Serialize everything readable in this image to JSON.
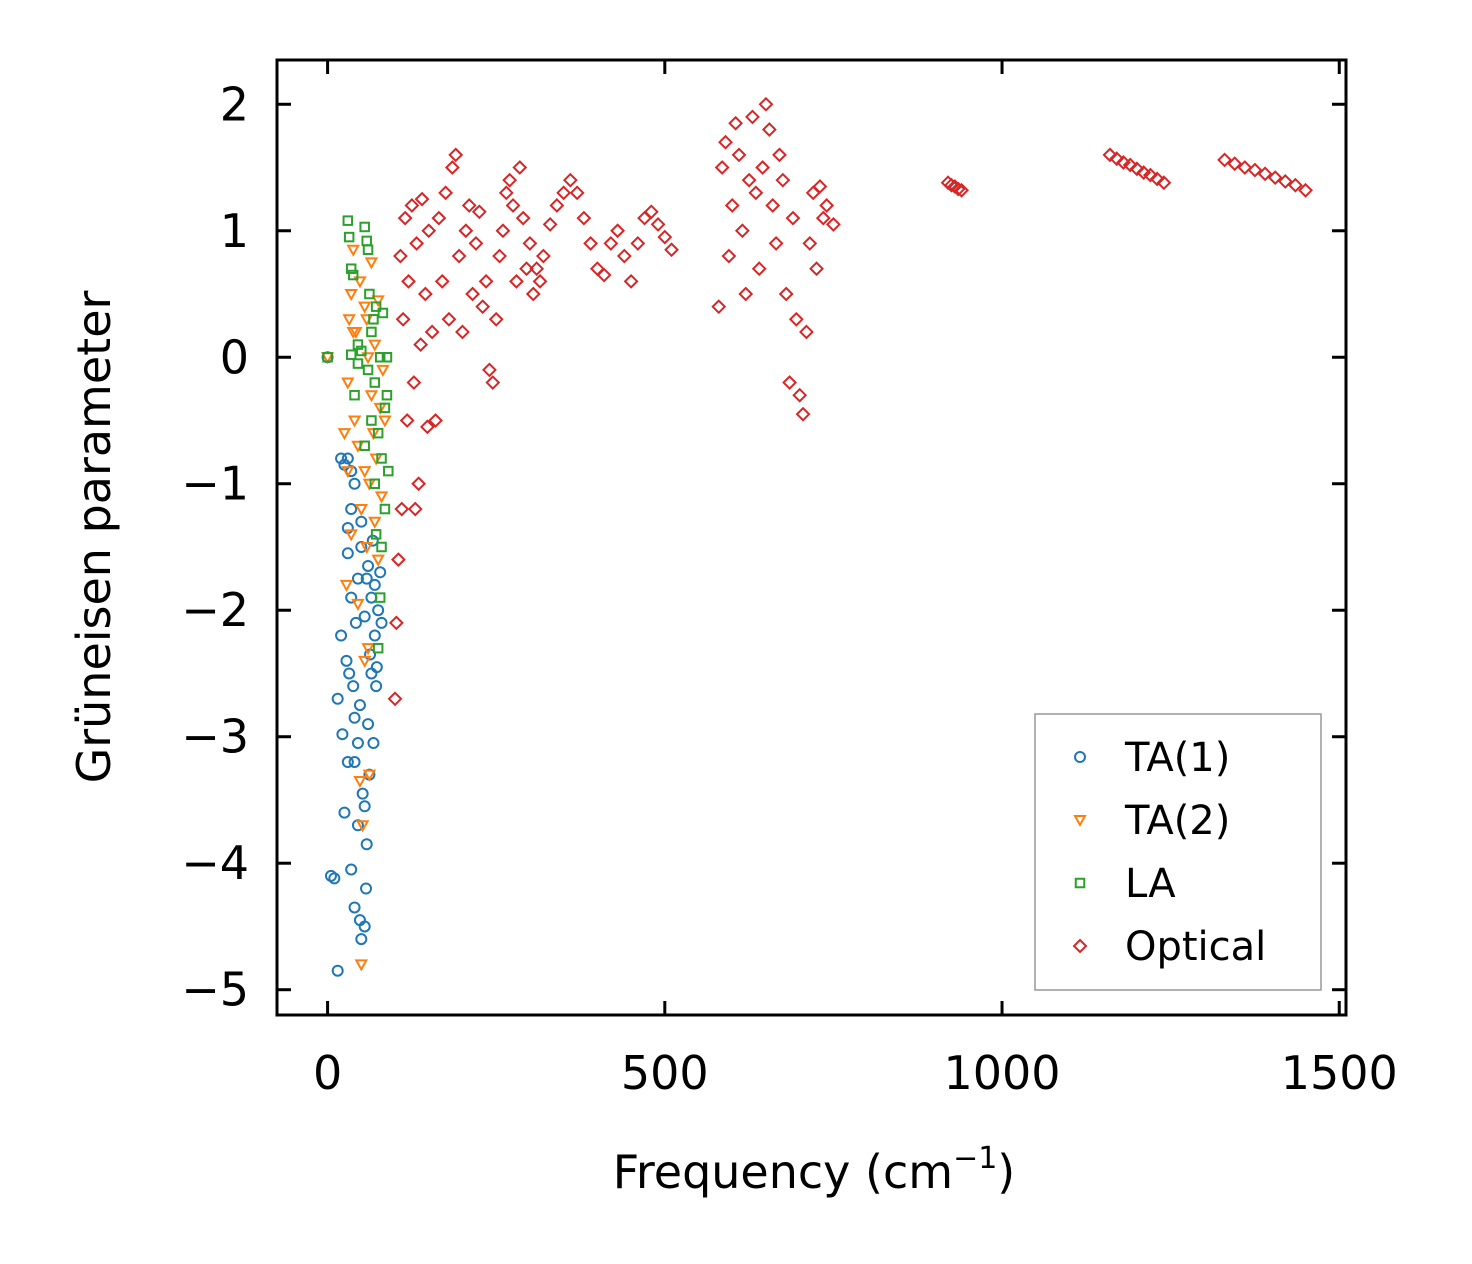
{
  "chart_data": {
    "type": "scatter",
    "title": "",
    "xlabel": "Frequency (cm",
    "xlabel_sup": "−1",
    "xlabel_suffix": ")",
    "ylabel": "Grüneisen parameter",
    "xlim": [
      -75,
      1510
    ],
    "ylim": [
      -5.2,
      2.35
    ],
    "xticks": [
      0,
      500,
      1000,
      1500
    ],
    "xtick_labels": [
      "0",
      "500",
      "1000",
      "1500"
    ],
    "yticks": [
      2,
      1,
      0,
      -1,
      -2,
      -3,
      -4,
      -5
    ],
    "ytick_labels": [
      "2",
      "1",
      "0",
      "−1",
      "−2",
      "−3",
      "−4",
      "−5"
    ],
    "legend_position": "lower-right",
    "series": [
      {
        "name": "TA(1)",
        "color": "#1f77b4",
        "marker": "circle",
        "points": [
          [
            0,
            0
          ],
          [
            5,
            -4.1
          ],
          [
            10,
            -4.12
          ],
          [
            15,
            -4.85
          ],
          [
            15,
            -2.7
          ],
          [
            20,
            -2.2
          ],
          [
            22,
            -2.98
          ],
          [
            25,
            -3.6
          ],
          [
            28,
            -2.4
          ],
          [
            30,
            -3.2
          ],
          [
            30,
            -1.35
          ],
          [
            32,
            -2.5
          ],
          [
            35,
            -4.05
          ],
          [
            35,
            -1.9
          ],
          [
            38,
            -2.6
          ],
          [
            40,
            -4.35
          ],
          [
            40,
            -3.2
          ],
          [
            42,
            -2.1
          ],
          [
            45,
            -1.75
          ],
          [
            45,
            -3.7
          ],
          [
            48,
            -4.45
          ],
          [
            48,
            -2.75
          ],
          [
            50,
            -4.6
          ],
          [
            50,
            -1.5
          ],
          [
            52,
            -3.45
          ],
          [
            55,
            -4.5
          ],
          [
            55,
            -2.05
          ],
          [
            57,
            -4.2
          ],
          [
            58,
            -3.85
          ],
          [
            60,
            -2.9
          ],
          [
            60,
            -1.65
          ],
          [
            62,
            -3.3
          ],
          [
            65,
            -2.5
          ],
          [
            65,
            -1.9
          ],
          [
            68,
            -3.05
          ],
          [
            70,
            -2.2
          ],
          [
            70,
            -1.8
          ],
          [
            72,
            -2.6
          ],
          [
            75,
            -2.0
          ],
          [
            78,
            -1.7
          ],
          [
            80,
            -2.1
          ],
          [
            25,
            -0.85
          ],
          [
            30,
            -0.8
          ],
          [
            35,
            -0.9
          ],
          [
            40,
            -1.0
          ],
          [
            20,
            -0.8
          ],
          [
            45,
            -3.05
          ],
          [
            55,
            -3.55
          ],
          [
            40,
            -2.85
          ],
          [
            30,
            -1.55
          ],
          [
            50,
            -1.3
          ],
          [
            58,
            -1.75
          ],
          [
            63,
            -2.35
          ],
          [
            67,
            -1.45
          ],
          [
            73,
            -2.45
          ],
          [
            35,
            -1.2
          ]
        ]
      },
      {
        "name": "TA(2)",
        "color": "#ff7f0e",
        "marker": "triangle-down",
        "points": [
          [
            0,
            0
          ],
          [
            30,
            -0.2
          ],
          [
            32,
            0.3
          ],
          [
            35,
            0.5
          ],
          [
            38,
            0.85
          ],
          [
            40,
            -0.5
          ],
          [
            42,
            0.2
          ],
          [
            45,
            -0.7
          ],
          [
            48,
            0.6
          ],
          [
            50,
            -4.8
          ],
          [
            50,
            -1.2
          ],
          [
            52,
            -3.7
          ],
          [
            55,
            0.4
          ],
          [
            55,
            -0.9
          ],
          [
            58,
            -1.5
          ],
          [
            60,
            0.0
          ],
          [
            60,
            -2.3
          ],
          [
            62,
            -1.0
          ],
          [
            65,
            0.75
          ],
          [
            65,
            -0.3
          ],
          [
            68,
            -0.6
          ],
          [
            70,
            0.1
          ],
          [
            70,
            -1.3
          ],
          [
            72,
            -0.8
          ],
          [
            75,
            0.45
          ],
          [
            75,
            -1.6
          ],
          [
            78,
            -0.4
          ],
          [
            80,
            -1.1
          ],
          [
            82,
            -0.1
          ],
          [
            85,
            -0.5
          ],
          [
            25,
            -0.6
          ],
          [
            28,
            -1.8
          ],
          [
            30,
            -0.9
          ],
          [
            35,
            -1.4
          ],
          [
            45,
            -1.95
          ],
          [
            55,
            -2.4
          ],
          [
            62,
            -3.3
          ],
          [
            48,
            -3.35
          ],
          [
            38,
            0.2
          ],
          [
            58,
            0.3
          ]
        ]
      },
      {
        "name": "LA",
        "color": "#2ca02c",
        "marker": "square",
        "points": [
          [
            0,
            0
          ],
          [
            30,
            1.08
          ],
          [
            32,
            0.95
          ],
          [
            35,
            0.7
          ],
          [
            38,
            0.65
          ],
          [
            40,
            -0.3
          ],
          [
            45,
            0.1
          ],
          [
            50,
            0.05
          ],
          [
            55,
            1.03
          ],
          [
            58,
            0.92
          ],
          [
            60,
            0.85
          ],
          [
            60,
            -0.1
          ],
          [
            62,
            0.5
          ],
          [
            65,
            0.2
          ],
          [
            65,
            -0.5
          ],
          [
            68,
            0.3
          ],
          [
            70,
            -0.2
          ],
          [
            70,
            -1.0
          ],
          [
            72,
            0.4
          ],
          [
            75,
            -0.6
          ],
          [
            75,
            -2.3
          ],
          [
            78,
            0.0
          ],
          [
            80,
            -0.8
          ],
          [
            80,
            -1.5
          ],
          [
            82,
            0.35
          ],
          [
            85,
            -0.4
          ],
          [
            85,
            -1.2
          ],
          [
            88,
            0.0
          ],
          [
            90,
            -0.9
          ],
          [
            35,
            0.02
          ],
          [
            45,
            -0.05
          ],
          [
            55,
            -0.7
          ],
          [
            78,
            -1.9
          ],
          [
            72,
            -1.4
          ],
          [
            88,
            -0.3
          ]
        ]
      },
      {
        "name": "Optical",
        "color": "#d62728",
        "marker": "diamond",
        "points": [
          [
            100,
            -2.7
          ],
          [
            102,
            -2.1
          ],
          [
            105,
            -1.6
          ],
          [
            108,
            0.8
          ],
          [
            110,
            -1.2
          ],
          [
            112,
            0.3
          ],
          [
            115,
            1.1
          ],
          [
            118,
            -0.5
          ],
          [
            120,
            0.6
          ],
          [
            125,
            1.2
          ],
          [
            128,
            -0.2
          ],
          [
            130,
            -1.2
          ],
          [
            132,
            0.9
          ],
          [
            135,
            -1.0
          ],
          [
            138,
            0.1
          ],
          [
            140,
            1.25
          ],
          [
            145,
            0.5
          ],
          [
            148,
            -0.55
          ],
          [
            150,
            1.0
          ],
          [
            155,
            0.2
          ],
          [
            160,
            -0.5
          ],
          [
            165,
            1.1
          ],
          [
            170,
            0.6
          ],
          [
            175,
            1.3
          ],
          [
            180,
            0.3
          ],
          [
            185,
            1.5
          ],
          [
            190,
            1.6
          ],
          [
            195,
            0.8
          ],
          [
            200,
            0.2
          ],
          [
            205,
            1.0
          ],
          [
            210,
            1.2
          ],
          [
            215,
            0.5
          ],
          [
            220,
            0.9
          ],
          [
            225,
            1.15
          ],
          [
            230,
            0.4
          ],
          [
            235,
            0.6
          ],
          [
            240,
            -0.1
          ],
          [
            245,
            -0.2
          ],
          [
            250,
            0.3
          ],
          [
            255,
            0.8
          ],
          [
            260,
            1.0
          ],
          [
            265,
            1.3
          ],
          [
            270,
            1.4
          ],
          [
            275,
            1.2
          ],
          [
            280,
            0.6
          ],
          [
            285,
            1.5
          ],
          [
            290,
            1.1
          ],
          [
            295,
            0.7
          ],
          [
            300,
            0.9
          ],
          [
            305,
            0.5
          ],
          [
            310,
            0.7
          ],
          [
            315,
            0.6
          ],
          [
            320,
            0.8
          ],
          [
            330,
            1.05
          ],
          [
            340,
            1.2
          ],
          [
            350,
            1.3
          ],
          [
            360,
            1.4
          ],
          [
            370,
            1.3
          ],
          [
            380,
            1.1
          ],
          [
            390,
            0.9
          ],
          [
            400,
            0.7
          ],
          [
            410,
            0.65
          ],
          [
            420,
            0.9
          ],
          [
            430,
            1.0
          ],
          [
            440,
            0.8
          ],
          [
            450,
            0.6
          ],
          [
            460,
            0.9
          ],
          [
            470,
            1.1
          ],
          [
            480,
            1.15
          ],
          [
            490,
            1.05
          ],
          [
            500,
            0.95
          ],
          [
            510,
            0.85
          ],
          [
            580,
            0.4
          ],
          [
            585,
            1.5
          ],
          [
            590,
            1.7
          ],
          [
            595,
            0.8
          ],
          [
            600,
            1.2
          ],
          [
            605,
            1.85
          ],
          [
            610,
            1.6
          ],
          [
            615,
            1.0
          ],
          [
            620,
            0.5
          ],
          [
            625,
            1.4
          ],
          [
            630,
            1.9
          ],
          [
            635,
            1.3
          ],
          [
            640,
            0.7
          ],
          [
            645,
            1.5
          ],
          [
            650,
            2.0
          ],
          [
            655,
            1.8
          ],
          [
            660,
            1.2
          ],
          [
            665,
            0.9
          ],
          [
            670,
            1.6
          ],
          [
            675,
            1.4
          ],
          [
            680,
            0.5
          ],
          [
            685,
            -0.2
          ],
          [
            690,
            1.1
          ],
          [
            695,
            0.3
          ],
          [
            700,
            -0.3
          ],
          [
            705,
            -0.45
          ],
          [
            710,
            0.2
          ],
          [
            715,
            0.9
          ],
          [
            720,
            1.3
          ],
          [
            725,
            0.7
          ],
          [
            730,
            1.35
          ],
          [
            735,
            1.1
          ],
          [
            740,
            1.2
          ],
          [
            750,
            1.05
          ],
          [
            920,
            1.38
          ],
          [
            925,
            1.36
          ],
          [
            930,
            1.35
          ],
          [
            935,
            1.33
          ],
          [
            940,
            1.32
          ],
          [
            1160,
            1.6
          ],
          [
            1170,
            1.57
          ],
          [
            1180,
            1.54
          ],
          [
            1190,
            1.52
          ],
          [
            1200,
            1.49
          ],
          [
            1210,
            1.46
          ],
          [
            1220,
            1.44
          ],
          [
            1230,
            1.41
          ],
          [
            1240,
            1.38
          ],
          [
            1330,
            1.56
          ],
          [
            1345,
            1.53
          ],
          [
            1360,
            1.5
          ],
          [
            1375,
            1.48
          ],
          [
            1390,
            1.45
          ],
          [
            1405,
            1.42
          ],
          [
            1420,
            1.39
          ],
          [
            1435,
            1.36
          ],
          [
            1450,
            1.32
          ]
        ]
      }
    ]
  }
}
